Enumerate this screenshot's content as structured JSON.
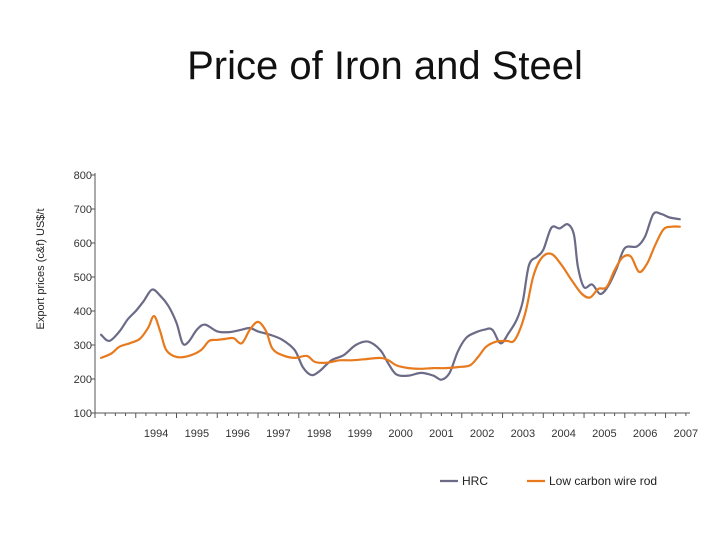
{
  "chart_data": {
    "type": "line",
    "title": "Price of Iron and Steel",
    "xlabel": "",
    "ylabel": "Export prices (c&f) US$/t",
    "ylim": [
      100,
      800
    ],
    "yticks": [
      100,
      200,
      300,
      400,
      500,
      600,
      700,
      800
    ],
    "xlim": [
      1993.0,
      2007.6
    ],
    "xticks": [
      "1994",
      "1995",
      "1996",
      "1997",
      "1998",
      "1999",
      "2000",
      "2001",
      "2002",
      "2003",
      "2004",
      "2005",
      "2006",
      "2007"
    ],
    "grid": false,
    "legend": "bottom",
    "series": [
      {
        "name": "HRC",
        "color": "#6b6b88",
        "points": [
          [
            1993.15,
            330
          ],
          [
            1993.35,
            312
          ],
          [
            1993.6,
            340
          ],
          [
            1993.8,
            375
          ],
          [
            1994.0,
            400
          ],
          [
            1994.2,
            430
          ],
          [
            1994.4,
            463
          ],
          [
            1994.6,
            445
          ],
          [
            1994.8,
            415
          ],
          [
            1995.0,
            365
          ],
          [
            1995.15,
            305
          ],
          [
            1995.3,
            310
          ],
          [
            1995.5,
            345
          ],
          [
            1995.7,
            360
          ],
          [
            1996.0,
            340
          ],
          [
            1996.3,
            338
          ],
          [
            1996.6,
            345
          ],
          [
            1996.8,
            350
          ],
          [
            1997.0,
            340
          ],
          [
            1997.3,
            330
          ],
          [
            1997.6,
            315
          ],
          [
            1997.9,
            285
          ],
          [
            1998.1,
            235
          ],
          [
            1998.3,
            212
          ],
          [
            1998.5,
            222
          ],
          [
            1998.8,
            255
          ],
          [
            1999.1,
            270
          ],
          [
            1999.4,
            300
          ],
          [
            1999.7,
            310
          ],
          [
            2000.0,
            285
          ],
          [
            2000.2,
            245
          ],
          [
            2000.4,
            213
          ],
          [
            2000.7,
            210
          ],
          [
            2001.0,
            218
          ],
          [
            2001.3,
            210
          ],
          [
            2001.5,
            198
          ],
          [
            2001.7,
            218
          ],
          [
            2001.9,
            280
          ],
          [
            2002.1,
            320
          ],
          [
            2002.3,
            335
          ],
          [
            2002.55,
            345
          ],
          [
            2002.75,
            345
          ],
          [
            2002.95,
            305
          ],
          [
            2003.15,
            335
          ],
          [
            2003.35,
            375
          ],
          [
            2003.5,
            430
          ],
          [
            2003.65,
            535
          ],
          [
            2003.85,
            560
          ],
          [
            2004.0,
            580
          ],
          [
            2004.2,
            645
          ],
          [
            2004.4,
            643
          ],
          [
            2004.6,
            655
          ],
          [
            2004.75,
            625
          ],
          [
            2004.85,
            530
          ],
          [
            2005.0,
            470
          ],
          [
            2005.2,
            478
          ],
          [
            2005.4,
            450
          ],
          [
            2005.6,
            475
          ],
          [
            2005.8,
            525
          ],
          [
            2006.0,
            585
          ],
          [
            2006.3,
            590
          ],
          [
            2006.5,
            620
          ],
          [
            2006.7,
            685
          ],
          [
            2006.9,
            685
          ],
          [
            2007.1,
            675
          ],
          [
            2007.35,
            670
          ]
        ]
      },
      {
        "name": "Low carbon wire rod",
        "color": "#e87a1e",
        "points": [
          [
            1993.15,
            262
          ],
          [
            1993.4,
            275
          ],
          [
            1993.6,
            295
          ],
          [
            1993.85,
            305
          ],
          [
            1994.1,
            318
          ],
          [
            1994.3,
            350
          ],
          [
            1994.45,
            385
          ],
          [
            1994.6,
            340
          ],
          [
            1994.75,
            285
          ],
          [
            1995.0,
            265
          ],
          [
            1995.3,
            268
          ],
          [
            1995.6,
            285
          ],
          [
            1995.8,
            312
          ],
          [
            1996.0,
            315
          ],
          [
            1996.2,
            318
          ],
          [
            1996.4,
            320
          ],
          [
            1996.6,
            305
          ],
          [
            1996.8,
            345
          ],
          [
            1997.0,
            368
          ],
          [
            1997.2,
            340
          ],
          [
            1997.35,
            290
          ],
          [
            1997.6,
            270
          ],
          [
            1997.9,
            262
          ],
          [
            1998.2,
            268
          ],
          [
            1998.4,
            250
          ],
          [
            1998.7,
            248
          ],
          [
            1999.0,
            255
          ],
          [
            1999.3,
            255
          ],
          [
            1999.6,
            258
          ],
          [
            2000.0,
            262
          ],
          [
            2000.2,
            255
          ],
          [
            2000.4,
            240
          ],
          [
            2000.7,
            232
          ],
          [
            2001.0,
            230
          ],
          [
            2001.3,
            232
          ],
          [
            2001.6,
            232
          ],
          [
            2001.9,
            235
          ],
          [
            2002.2,
            240
          ],
          [
            2002.4,
            265
          ],
          [
            2002.6,
            295
          ],
          [
            2002.85,
            310
          ],
          [
            2003.1,
            312
          ],
          [
            2003.3,
            315
          ],
          [
            2003.55,
            390
          ],
          [
            2003.75,
            500
          ],
          [
            2003.95,
            555
          ],
          [
            2004.2,
            568
          ],
          [
            2004.45,
            535
          ],
          [
            2004.7,
            490
          ],
          [
            2004.95,
            450
          ],
          [
            2005.15,
            440
          ],
          [
            2005.35,
            465
          ],
          [
            2005.55,
            470
          ],
          [
            2005.75,
            520
          ],
          [
            2005.95,
            558
          ],
          [
            2006.15,
            560
          ],
          [
            2006.35,
            515
          ],
          [
            2006.55,
            540
          ],
          [
            2006.75,
            595
          ],
          [
            2006.95,
            640
          ],
          [
            2007.15,
            648
          ],
          [
            2007.35,
            648
          ]
        ]
      }
    ]
  }
}
